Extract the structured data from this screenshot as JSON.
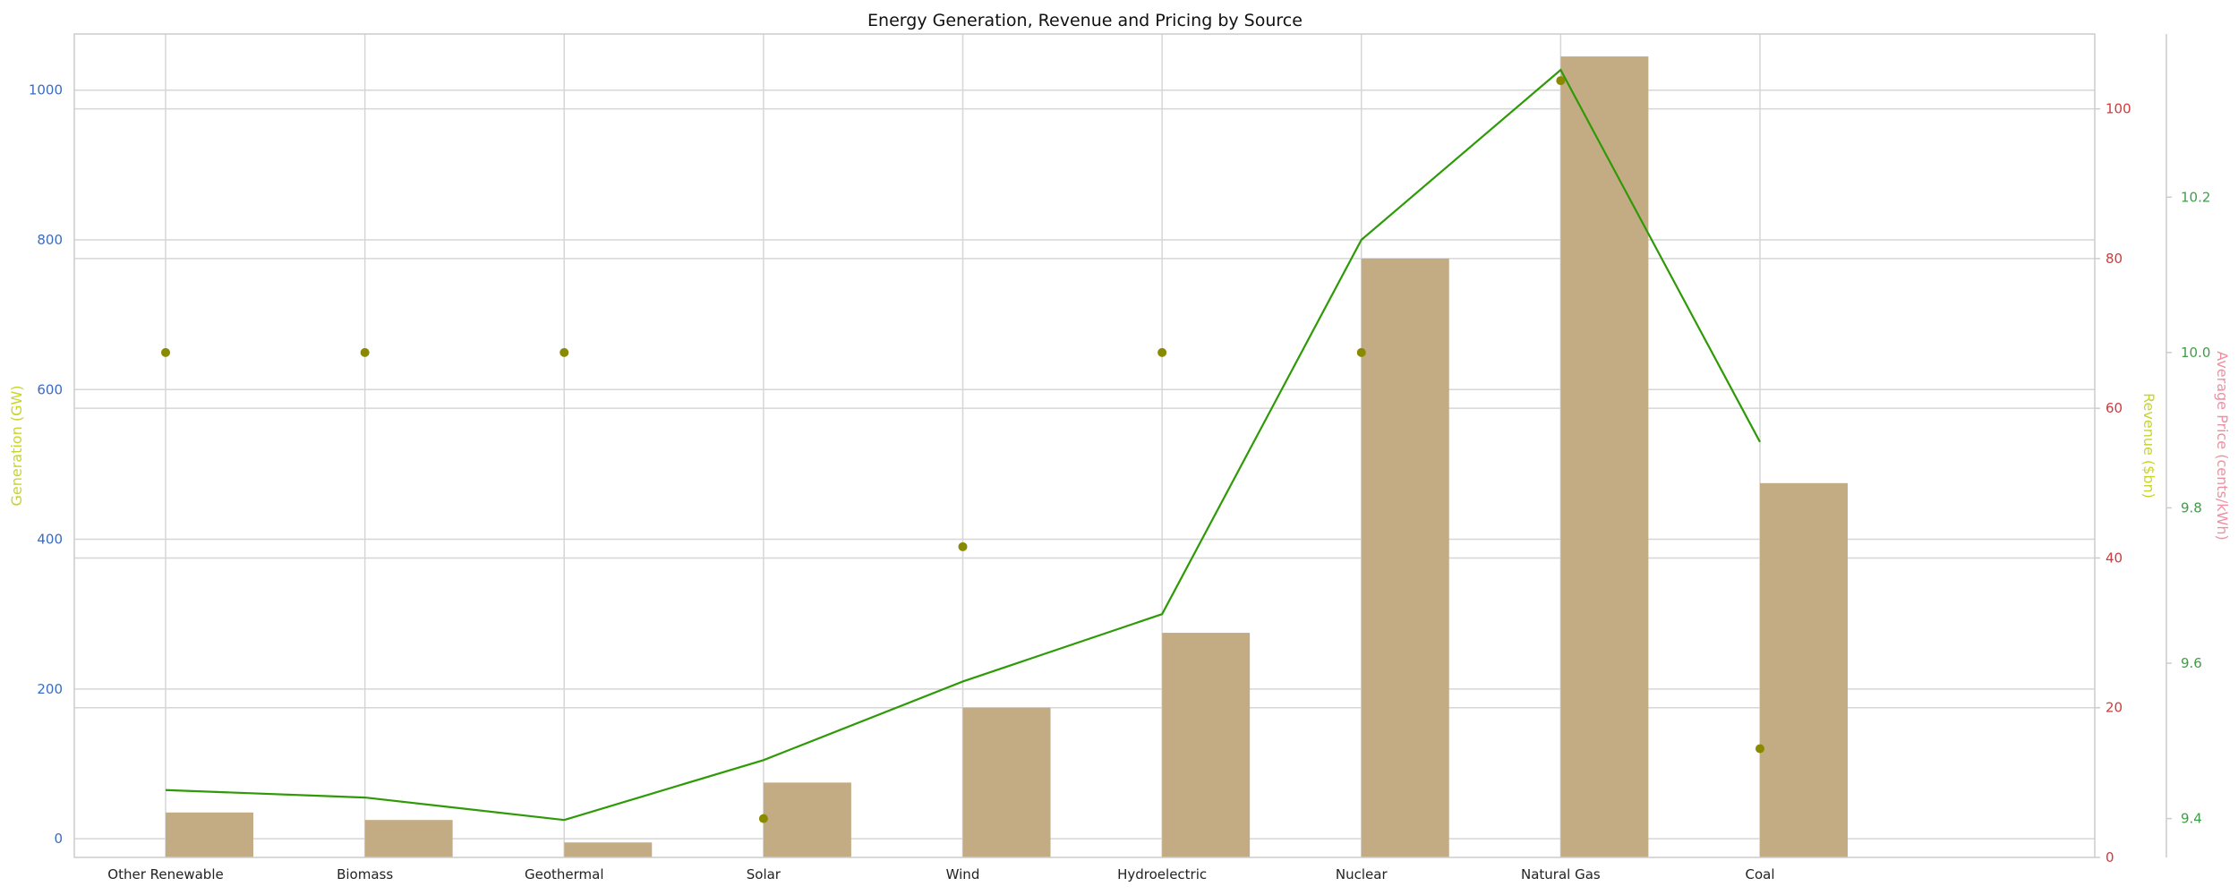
{
  "chart_data": {
    "type": "bar",
    "title": "Energy Generation, Revenue and Pricing by Source",
    "categories": [
      "Other Renewable",
      "Biomass",
      "Geothermal",
      "Solar",
      "Wind",
      "Hydroelectric",
      "Nuclear",
      "Natural Gas",
      "Coal"
    ],
    "axes": {
      "left": {
        "label": "Generation (GW)",
        "label_color": "#c8d42a",
        "tick_color": "#3b6cc0",
        "ylim": [
          -25,
          1075
        ],
        "ticks": [
          0,
          200,
          400,
          600,
          800,
          1000
        ]
      },
      "right1": {
        "label": "Revenue ($bn)",
        "label_color": "#c8d42a",
        "tick_color": "#d13a3a",
        "ylim": [
          0,
          110
        ],
        "ticks": [
          0,
          20,
          40,
          60,
          80,
          100
        ]
      },
      "right2": {
        "label": "Average Price (cents/kWh)",
        "label_color": "#ef8fa2",
        "tick_color": "#3e9e46",
        "ylim": [
          9.35,
          10.41
        ],
        "ticks": [
          9.4,
          9.6,
          9.8,
          10.0,
          10.2
        ]
      }
    },
    "series": [
      {
        "kind": "bar",
        "axis": "right1",
        "color": "#c3ab83",
        "values": [
          6,
          5,
          2,
          10,
          20,
          30,
          80,
          107,
          50
        ]
      },
      {
        "kind": "line",
        "axis": "left",
        "color": "#2e9a07",
        "values": [
          65,
          55,
          25,
          105,
          210,
          300,
          800,
          1027,
          530
        ]
      },
      {
        "kind": "scatter",
        "axis": "right2",
        "color": "#8a8a00",
        "values": [
          10.0,
          10.0,
          10.0,
          9.4,
          9.75,
          10.0,
          10.0,
          10.35,
          9.49
        ]
      }
    ],
    "grid": true
  }
}
